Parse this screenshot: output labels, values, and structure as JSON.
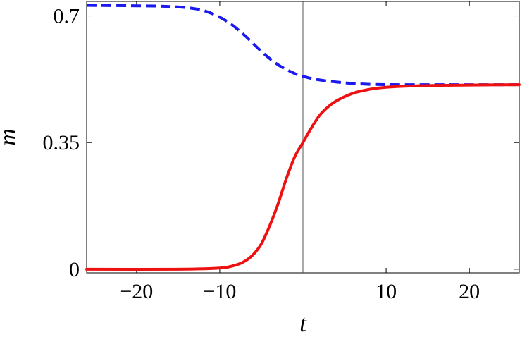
{
  "chart_data": {
    "type": "line",
    "title": "",
    "xlabel": "t",
    "ylabel": "m",
    "xlim": [
      -26,
      26
    ],
    "ylim": [
      -0.01,
      0.74
    ],
    "xticks": [
      -20,
      -10,
      10,
      20
    ],
    "xtick_labels": [
      "−20",
      "−10",
      "10",
      "20"
    ],
    "yticks": [
      0,
      0.35,
      0.7
    ],
    "ytick_labels": [
      "0",
      "0.35",
      "0.7"
    ],
    "vertical_reference_line": 0,
    "grid": false,
    "legend": "none",
    "series": [
      {
        "style": "dashed",
        "color": "#1a1aee",
        "x": [
          -26,
          -20,
          -16,
          -13,
          -11,
          -9,
          -7,
          -5,
          -3,
          -1,
          0,
          2,
          5,
          8,
          12,
          16,
          20,
          26
        ],
        "y": [
          0.729,
          0.728,
          0.726,
          0.72,
          0.707,
          0.683,
          0.646,
          0.602,
          0.565,
          0.541,
          0.533,
          0.523,
          0.515,
          0.511,
          0.51,
          0.51,
          0.51,
          0.51
        ]
      },
      {
        "style": "solid",
        "color": "#ee1111",
        "x": [
          -26,
          -15,
          -10,
          -8,
          -7,
          -6,
          -5,
          -4,
          -3,
          -2,
          -1,
          0,
          1,
          2,
          3,
          4,
          6,
          8,
          10,
          14,
          20,
          26
        ],
        "y": [
          0,
          0,
          0.003,
          0.012,
          0.022,
          0.04,
          0.07,
          0.12,
          0.18,
          0.25,
          0.31,
          0.35,
          0.39,
          0.425,
          0.448,
          0.465,
          0.486,
          0.497,
          0.503,
          0.507,
          0.509,
          0.51
        ]
      }
    ]
  }
}
